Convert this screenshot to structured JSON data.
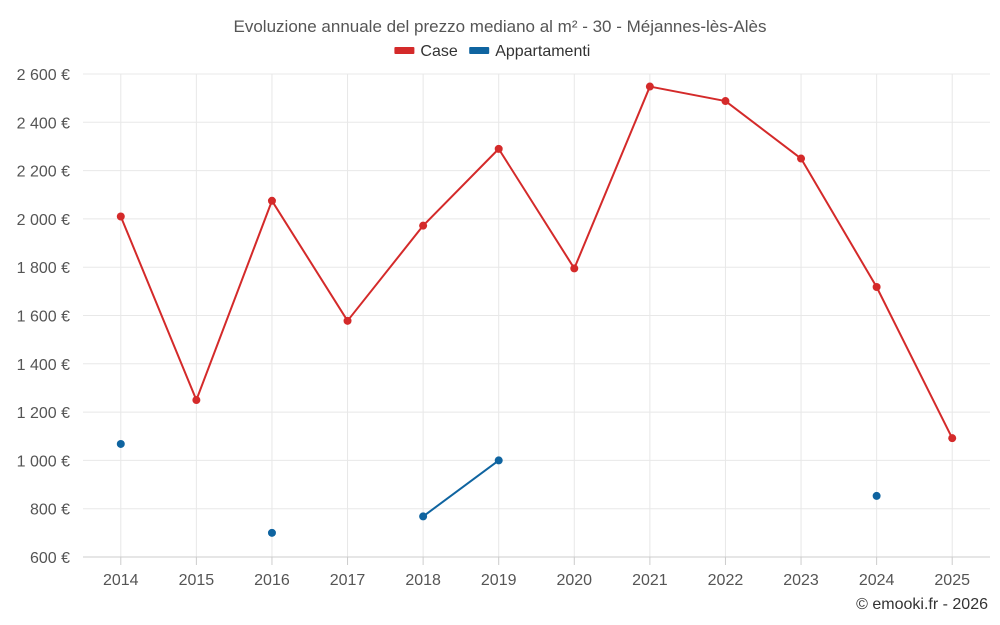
{
  "chart_data": {
    "type": "line",
    "title": "Evoluzione annuale del prezzo mediano al m² - 30 - Méjannes-lès-Alès",
    "categories": [
      "2014",
      "2015",
      "2016",
      "2017",
      "2018",
      "2019",
      "2020",
      "2021",
      "2022",
      "2023",
      "2024",
      "2025"
    ],
    "ylim": [
      600,
      2600
    ],
    "yticks": [
      600,
      800,
      1000,
      1200,
      1400,
      1600,
      1800,
      2000,
      2200,
      2400,
      2600
    ],
    "ytick_labels": [
      "600 €",
      "800 €",
      "1 000 €",
      "1 200 €",
      "1 400 €",
      "1 600 €",
      "1 800 €",
      "2 000 €",
      "2 200 €",
      "2 400 €",
      "2 600 €"
    ],
    "grid": true,
    "legend_position": "top-center",
    "series": [
      {
        "name": "Case",
        "color": "#d42a2a",
        "values": [
          2010,
          1250,
          2075,
          1578,
          1972,
          2290,
          1795,
          2548,
          2488,
          2250,
          1718,
          1092
        ]
      },
      {
        "name": "Appartamenti",
        "color": "#0f64a0",
        "values": [
          1068,
          null,
          700,
          null,
          768,
          1000,
          null,
          null,
          null,
          null,
          853,
          null
        ]
      }
    ],
    "credit": "© emooki.fr - 2026"
  }
}
